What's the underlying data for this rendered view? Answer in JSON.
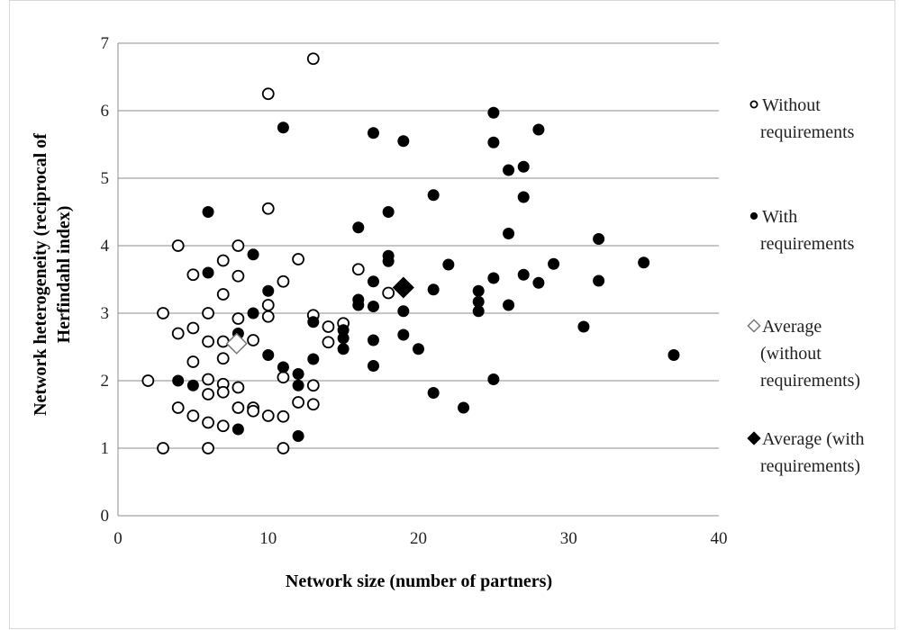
{
  "chart_data": {
    "type": "scatter",
    "title": "",
    "xlabel": "Network size (number  of partners)",
    "ylabel_lines": [
      "Network heterogeneity (reciprocal of",
      "Herfindahl  index)"
    ],
    "xlim": [
      0,
      40
    ],
    "ylim": [
      0,
      7
    ],
    "x_ticks": [
      0,
      10,
      20,
      30,
      40
    ],
    "y_ticks": [
      0,
      1,
      2,
      3,
      4,
      5,
      6,
      7
    ],
    "grid": "horizontal",
    "legend_position": "right",
    "series": [
      {
        "name_lines": [
          "Without",
          "requirements"
        ],
        "marker": "open-circle",
        "color": "#000000",
        "points": [
          [
            2,
            2.0
          ],
          [
            3,
            3.0
          ],
          [
            3,
            1.0
          ],
          [
            4,
            4.0
          ],
          [
            4,
            2.7
          ],
          [
            4,
            1.6
          ],
          [
            5,
            3.57
          ],
          [
            5,
            2.78
          ],
          [
            5,
            2.28
          ],
          [
            5,
            1.48
          ],
          [
            6,
            3.0
          ],
          [
            6,
            2.58
          ],
          [
            6,
            2.02
          ],
          [
            6,
            1.8
          ],
          [
            6,
            1.38
          ],
          [
            6,
            1.0
          ],
          [
            7,
            3.78
          ],
          [
            7,
            3.28
          ],
          [
            7,
            2.58
          ],
          [
            7,
            2.33
          ],
          [
            7,
            1.95
          ],
          [
            7,
            1.83
          ],
          [
            7,
            1.33
          ],
          [
            8,
            4.0
          ],
          [
            8,
            3.55
          ],
          [
            8,
            2.92
          ],
          [
            8,
            1.9
          ],
          [
            8,
            1.6
          ],
          [
            9,
            2.6
          ],
          [
            9,
            1.6
          ],
          [
            9,
            1.55
          ],
          [
            10,
            6.25
          ],
          [
            10,
            4.55
          ],
          [
            10,
            3.12
          ],
          [
            10,
            2.95
          ],
          [
            10,
            1.48
          ],
          [
            11,
            3.47
          ],
          [
            11,
            2.05
          ],
          [
            11,
            1.47
          ],
          [
            11,
            1.0
          ],
          [
            12,
            3.8
          ],
          [
            12,
            1.68
          ],
          [
            13,
            6.77
          ],
          [
            13,
            2.97
          ],
          [
            13,
            1.93
          ],
          [
            13,
            1.65
          ],
          [
            14,
            2.8
          ],
          [
            14,
            2.57
          ],
          [
            15,
            2.85
          ],
          [
            16,
            3.65
          ],
          [
            18,
            3.3
          ]
        ]
      },
      {
        "name_lines": [
          "With",
          "requirements"
        ],
        "marker": "filled-circle",
        "color": "#000000",
        "points": [
          [
            4,
            2.0
          ],
          [
            5,
            1.93
          ],
          [
            6,
            4.5
          ],
          [
            6,
            3.6
          ],
          [
            8,
            2.7
          ],
          [
            8,
            1.28
          ],
          [
            9,
            3.87
          ],
          [
            9,
            3.0
          ],
          [
            10,
            3.33
          ],
          [
            10,
            2.38
          ],
          [
            11,
            5.75
          ],
          [
            11,
            2.2
          ],
          [
            12,
            2.1
          ],
          [
            12,
            1.93
          ],
          [
            12,
            1.18
          ],
          [
            13,
            2.87
          ],
          [
            13,
            2.32
          ],
          [
            15,
            2.75
          ],
          [
            15,
            2.63
          ],
          [
            15,
            2.47
          ],
          [
            16,
            4.27
          ],
          [
            16,
            3.2
          ],
          [
            16,
            3.12
          ],
          [
            17,
            5.67
          ],
          [
            17,
            3.47
          ],
          [
            17,
            3.1
          ],
          [
            17,
            2.6
          ],
          [
            17,
            2.22
          ],
          [
            18,
            4.5
          ],
          [
            18,
            3.85
          ],
          [
            18,
            3.77
          ],
          [
            19,
            5.55
          ],
          [
            19,
            3.03
          ],
          [
            19,
            2.68
          ],
          [
            20,
            2.47
          ],
          [
            21,
            4.75
          ],
          [
            21,
            3.35
          ],
          [
            21,
            1.82
          ],
          [
            22,
            3.72
          ],
          [
            23,
            1.6
          ],
          [
            24,
            3.33
          ],
          [
            24,
            3.17
          ],
          [
            24,
            3.03
          ],
          [
            25,
            5.97
          ],
          [
            25,
            5.53
          ],
          [
            25,
            3.52
          ],
          [
            25,
            2.02
          ],
          [
            26,
            5.12
          ],
          [
            26,
            4.18
          ],
          [
            26,
            3.12
          ],
          [
            27,
            5.17
          ],
          [
            27,
            4.72
          ],
          [
            27,
            3.57
          ],
          [
            28,
            5.72
          ],
          [
            28,
            3.45
          ],
          [
            29,
            3.73
          ],
          [
            31,
            2.8
          ],
          [
            32,
            4.1
          ],
          [
            32,
            3.48
          ],
          [
            35,
            3.75
          ],
          [
            37,
            2.38
          ]
        ]
      },
      {
        "name_lines": [
          "Average",
          "(without",
          "requirements)"
        ],
        "marker": "open-diamond",
        "color": "#000000",
        "points": [
          [
            7.9,
            2.55
          ]
        ]
      },
      {
        "name_lines": [
          "Average (with",
          "requirements)"
        ],
        "marker": "filled-diamond",
        "color": "#000000",
        "points": [
          [
            19.0,
            3.38
          ]
        ]
      }
    ]
  }
}
